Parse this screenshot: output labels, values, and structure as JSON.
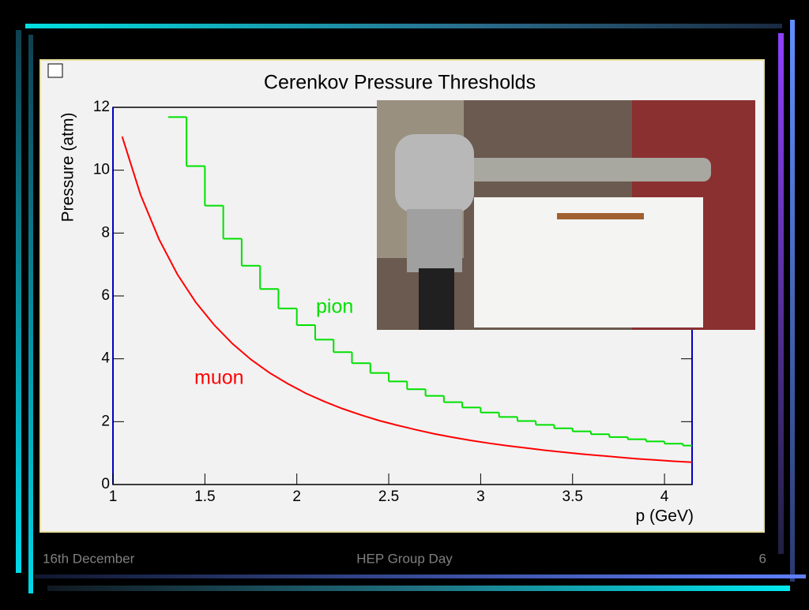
{
  "chart_data": {
    "type": "line",
    "title": "Cerenkov Pressure Thresholds",
    "x_label": "p (GeV)",
    "y_label": "Pressure (atm)",
    "x": [
      1.05,
      1.15,
      1.25,
      1.35,
      1.45,
      1.55,
      1.65,
      1.75,
      1.85,
      1.95,
      2.05,
      2.15,
      2.25,
      2.35,
      2.45,
      2.55,
      2.65,
      2.75,
      2.85,
      2.95,
      3.05,
      3.15,
      3.25,
      3.35,
      3.45,
      3.55,
      3.65,
      3.75,
      3.85,
      3.95,
      4.05,
      4.15
    ],
    "series": [
      {
        "name": "muon",
        "color": "#ff0000",
        "step": false,
        "values": [
          11.07,
          9.22,
          7.81,
          6.69,
          5.8,
          5.08,
          4.48,
          3.98,
          3.56,
          3.21,
          2.9,
          2.64,
          2.41,
          2.21,
          2.03,
          1.88,
          1.74,
          1.61,
          1.5,
          1.4,
          1.31,
          1.23,
          1.16,
          1.09,
          1.03,
          0.97,
          0.92,
          0.87,
          0.82,
          0.78,
          0.74,
          0.71
        ]
      },
      {
        "name": "pion",
        "color": "#00e000",
        "step": true,
        "values": [
          null,
          null,
          null,
          11.69,
          10.13,
          8.87,
          7.82,
          6.96,
          6.22,
          5.6,
          5.07,
          4.61,
          4.21,
          3.86,
          3.55,
          3.28,
          3.03,
          2.82,
          2.62,
          2.45,
          2.29,
          2.15,
          2.02,
          1.9,
          1.79,
          1.69,
          1.6,
          1.51,
          1.44,
          1.37,
          1.3,
          1.24
        ]
      }
    ],
    "xlim": [
      1,
      4.15
    ],
    "ylim": [
      0,
      12
    ],
    "xticks": [
      1,
      1.5,
      2,
      2.5,
      3,
      3.5,
      4
    ],
    "yticks": [
      0,
      2,
      4,
      6,
      8,
      10,
      12
    ]
  },
  "footer": {
    "left": "16th December",
    "center": "HEP Group Day",
    "right": "6"
  }
}
